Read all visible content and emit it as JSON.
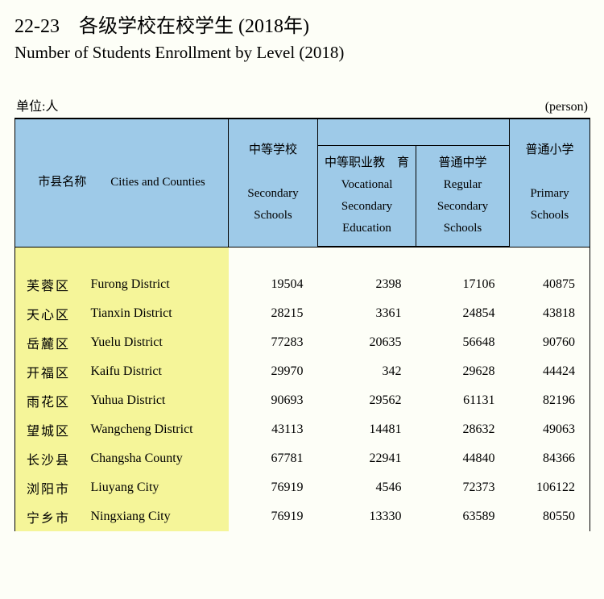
{
  "title_cn": "22-23　各级学校在校学生 (2018年)",
  "title_en": "Number of Students Enrollment by Level (2018)",
  "unit_cn": "单位:人",
  "unit_en": "(person)",
  "headers": {
    "city_cn": "市县名称",
    "city_en": "Cities and Counties",
    "secondary_cn": "中等学校",
    "secondary_en": "Secondary Schools",
    "vocational_cn": "中等职业教　育",
    "vocational_en": "Vocational Secondary Education",
    "regular_cn": "普通中学",
    "regular_en": "Regular Secondary Schools",
    "primary_cn": "普通小学",
    "primary_en": "Primary Schools"
  },
  "rows": [
    {
      "name_cn": "芙蓉区",
      "name_en": "Furong District",
      "secondary": "19504",
      "vocational": "2398",
      "regular": "17106",
      "primary": "40875"
    },
    {
      "name_cn": "天心区",
      "name_en": "Tianxin District",
      "secondary": "28215",
      "vocational": "3361",
      "regular": "24854",
      "primary": "43818"
    },
    {
      "name_cn": "岳麓区",
      "name_en": "Yuelu District",
      "secondary": "77283",
      "vocational": "20635",
      "regular": "56648",
      "primary": "90760"
    },
    {
      "name_cn": "开福区",
      "name_en": "Kaifu District",
      "secondary": "29970",
      "vocational": "342",
      "regular": "29628",
      "primary": "44424"
    },
    {
      "name_cn": "雨花区",
      "name_en": "Yuhua District",
      "secondary": "90693",
      "vocational": "29562",
      "regular": "61131",
      "primary": "82196"
    },
    {
      "name_cn": "望城区",
      "name_en": "Wangcheng District",
      "secondary": "43113",
      "vocational": "14481",
      "regular": "28632",
      "primary": "49063"
    },
    {
      "name_cn": "长沙县",
      "name_en": "Changsha County",
      "secondary": "67781",
      "vocational": "22941",
      "regular": "44840",
      "primary": "84366"
    },
    {
      "name_cn": "浏阳市",
      "name_en": "Liuyang City",
      "secondary": "76919",
      "vocational": "4546",
      "regular": "72373",
      "primary": "106122"
    },
    {
      "name_cn": "宁乡市",
      "name_en": "Ningxiang City",
      "secondary": "76919",
      "vocational": "13330",
      "regular": "63589",
      "primary": "80550"
    }
  ],
  "style": {
    "header_bg": "#9ecae8",
    "name_bg": "#f5f599",
    "page_bg": "#fdfef7",
    "border_color": "#000000",
    "font_cn": "SimSun",
    "font_en": "Times New Roman"
  }
}
